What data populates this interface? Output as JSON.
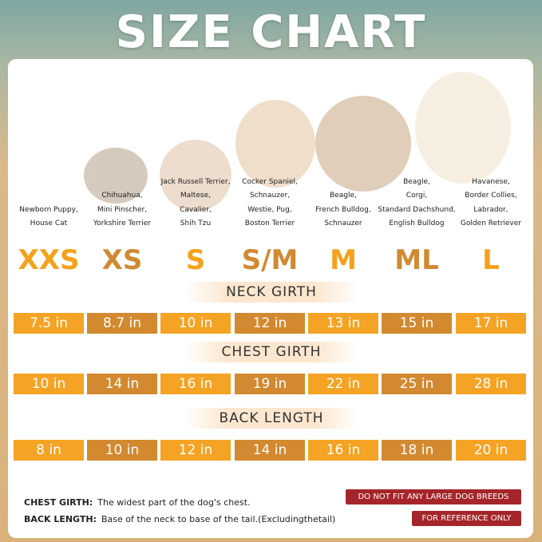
{
  "title": "SIZE CHART",
  "sizes": [
    {
      "label": "XXS",
      "breeds": [
        "Newborn Puppy,",
        "House Cat"
      ]
    },
    {
      "label": "XS",
      "breeds": [
        "Chihuahua,",
        "Mini Pinscher,",
        "Yorkshire Terrier"
      ]
    },
    {
      "label": "S",
      "breeds": [
        "Jack Russell Terrier,",
        "Maltese,",
        "Cavalier,",
        "Shih Tzu"
      ]
    },
    {
      "label": "S/M",
      "breeds": [
        "Cocker Spaniel,",
        "Schnauzer,",
        "Westie, Pug,",
        "Boston Terrier"
      ]
    },
    {
      "label": "M",
      "breeds": [
        "Beagle,",
        "French Bulldog,",
        "Schnauzer"
      ]
    },
    {
      "label": "ML",
      "breeds": [
        "Beagle,",
        "Corgi,",
        "Standard Dachshund,",
        "English Bulldog"
      ]
    },
    {
      "label": "L",
      "breeds": [
        "Havanese,",
        "Border Collies,",
        "Labrador,",
        "Golden Retriever"
      ]
    }
  ],
  "sections": [
    {
      "heading": "NECK GIRTH",
      "values": [
        "7.5 in",
        "8.7 in",
        "10 in",
        "12 in",
        "13 in",
        "15 in",
        "17 in"
      ]
    },
    {
      "heading": "CHEST GIRTH",
      "values": [
        "10 in",
        "14 in",
        "16 in",
        "19 in",
        "22 in",
        "25 in",
        "28 in"
      ]
    },
    {
      "heading": "BACK LENGTH",
      "values": [
        "8 in",
        "10 in",
        "12 in",
        "14 in",
        "16 in",
        "18 in",
        "20 in"
      ]
    }
  ],
  "notes": [
    {
      "term": "CHEST GIRTH:",
      "text": "The widest part of the dog's chest."
    },
    {
      "term": "BACK LENGTH:",
      "text": "Base of the neck to base of the tail.(Excludingthetail)"
    }
  ],
  "badges": [
    "DO NOT FIT ANY LARGE DOG BREEDS",
    "FOR REFERENCE ONLY"
  ]
}
